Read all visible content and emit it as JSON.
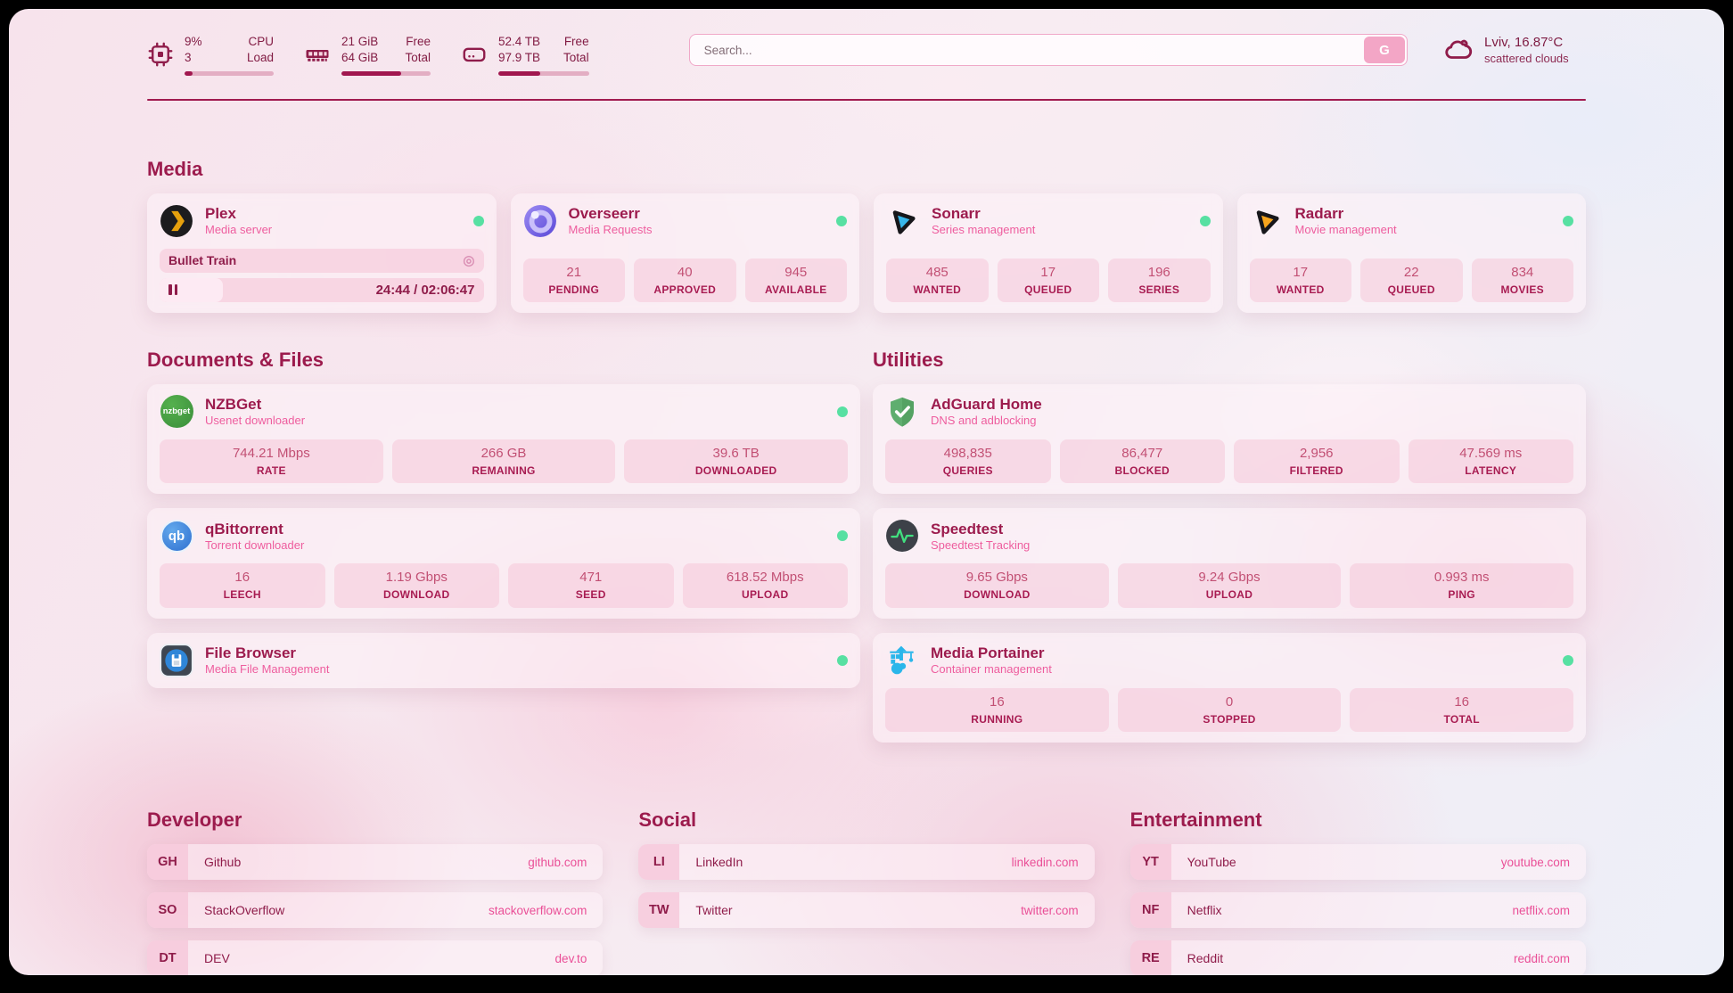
{
  "theme": {
    "accent": "#9c1b4d",
    "subtitle_pink": "#ee5d9e",
    "status_online": "#57e0a2",
    "pill_bg": "#f6c6d9"
  },
  "header": {
    "resources": [
      {
        "id": "cpu",
        "icon": "cpu-icon",
        "values": [
          "9%",
          "3"
        ],
        "labels": [
          "CPU",
          "Load"
        ],
        "bar_percent": 9
      },
      {
        "id": "ram",
        "icon": "ram-icon",
        "values": [
          "21 GiB",
          "64 GiB"
        ],
        "labels": [
          "Free",
          "Total"
        ],
        "bar_percent": 67
      },
      {
        "id": "disk",
        "icon": "disk-icon",
        "values": [
          "52.4 TB",
          "97.9 TB"
        ],
        "labels": [
          "Free",
          "Total"
        ],
        "bar_percent": 46
      }
    ],
    "search": {
      "placeholder": "Search...",
      "button_label": "G"
    },
    "weather": {
      "summary": "Lviv, 16.87°C",
      "condition": "scattered clouds"
    }
  },
  "app_sections": [
    {
      "title": "Media",
      "placement": "full",
      "apps": [
        {
          "slug": "plex",
          "name": "Plex",
          "subtitle": "Media server",
          "icon": "plex-icon",
          "online": true,
          "player": {
            "track": "Bullet Train",
            "time_display": "24:44 / 02:06:47",
            "progress_percent": 19.5
          }
        },
        {
          "slug": "overseerr",
          "name": "Overseerr",
          "subtitle": "Media Requests",
          "icon": "overseerr-icon",
          "online": true,
          "stats": [
            {
              "value": "21",
              "label": "PENDING"
            },
            {
              "value": "40",
              "label": "APPROVED"
            },
            {
              "value": "945",
              "label": "AVAILABLE"
            }
          ]
        },
        {
          "slug": "sonarr",
          "name": "Sonarr",
          "subtitle": "Series management",
          "icon": "sonarr-icon",
          "online": true,
          "stats": [
            {
              "value": "485",
              "label": "WANTED"
            },
            {
              "value": "17",
              "label": "QUEUED"
            },
            {
              "value": "196",
              "label": "SERIES"
            }
          ]
        },
        {
          "slug": "radarr",
          "name": "Radarr",
          "subtitle": "Movie management",
          "icon": "radarr-icon",
          "online": true,
          "stats": [
            {
              "value": "17",
              "label": "WANTED"
            },
            {
              "value": "22",
              "label": "QUEUED"
            },
            {
              "value": "834",
              "label": "MOVIES"
            }
          ]
        }
      ]
    },
    {
      "title": "Documents & Files",
      "placement": "left",
      "apps": [
        {
          "slug": "nzbget",
          "name": "NZBGet",
          "subtitle": "Usenet downloader",
          "icon": "nzbget-icon",
          "online": true,
          "stats": [
            {
              "value": "744.21 Mbps",
              "label": "RATE"
            },
            {
              "value": "266 GB",
              "label": "REMAINING"
            },
            {
              "value": "39.6 TB",
              "label": "DOWNLOADED"
            }
          ]
        },
        {
          "slug": "qbittorrent",
          "name": "qBittorrent",
          "subtitle": "Torrent downloader",
          "icon": "qbittorrent-icon",
          "online": true,
          "stats": [
            {
              "value": "16",
              "label": "LEECH"
            },
            {
              "value": "1.19 Gbps",
              "label": "DOWNLOAD"
            },
            {
              "value": "471",
              "label": "SEED"
            },
            {
              "value": "618.52 Mbps",
              "label": "UPLOAD"
            }
          ]
        },
        {
          "slug": "filebrowser",
          "name": "File Browser",
          "subtitle": "Media File Management",
          "icon": "filebrowser-icon",
          "online": true
        }
      ]
    },
    {
      "title": "Utilities",
      "placement": "right",
      "apps": [
        {
          "slug": "adguard",
          "name": "AdGuard Home",
          "subtitle": "DNS and adblocking",
          "icon": "adguard-icon",
          "online": false,
          "stats": [
            {
              "value": "498,835",
              "label": "QUERIES"
            },
            {
              "value": "86,477",
              "label": "BLOCKED"
            },
            {
              "value": "2,956",
              "label": "FILTERED"
            },
            {
              "value": "47.569 ms",
              "label": "LATENCY"
            }
          ]
        },
        {
          "slug": "speedtest",
          "name": "Speedtest",
          "subtitle": "Speedtest Tracking",
          "icon": "speedtest-icon",
          "online": false,
          "stats": [
            {
              "value": "9.65 Gbps",
              "label": "DOWNLOAD"
            },
            {
              "value": "9.24 Gbps",
              "label": "UPLOAD"
            },
            {
              "value": "0.993 ms",
              "label": "PING"
            }
          ]
        },
        {
          "slug": "portainer",
          "name": "Media Portainer",
          "subtitle": "Container management",
          "icon": "portainer-icon",
          "online": true,
          "stats": [
            {
              "value": "16",
              "label": "RUNNING"
            },
            {
              "value": "0",
              "label": "STOPPED"
            },
            {
              "value": "16",
              "label": "TOTAL"
            }
          ]
        }
      ]
    }
  ],
  "bookmark_sections": [
    {
      "title": "Developer",
      "links": [
        {
          "abbr": "GH",
          "name": "Github",
          "url": "github.com"
        },
        {
          "abbr": "SO",
          "name": "StackOverflow",
          "url": "stackoverflow.com"
        },
        {
          "abbr": "DT",
          "name": "DEV",
          "url": "dev.to"
        }
      ]
    },
    {
      "title": "Social",
      "links": [
        {
          "abbr": "LI",
          "name": "LinkedIn",
          "url": "linkedin.com"
        },
        {
          "abbr": "TW",
          "name": "Twitter",
          "url": "twitter.com"
        }
      ]
    },
    {
      "title": "Entertainment",
      "links": [
        {
          "abbr": "YT",
          "name": "YouTube",
          "url": "youtube.com"
        },
        {
          "abbr": "NF",
          "name": "Netflix",
          "url": "netflix.com"
        },
        {
          "abbr": "RE",
          "name": "Reddit",
          "url": "reddit.com"
        }
      ]
    }
  ]
}
